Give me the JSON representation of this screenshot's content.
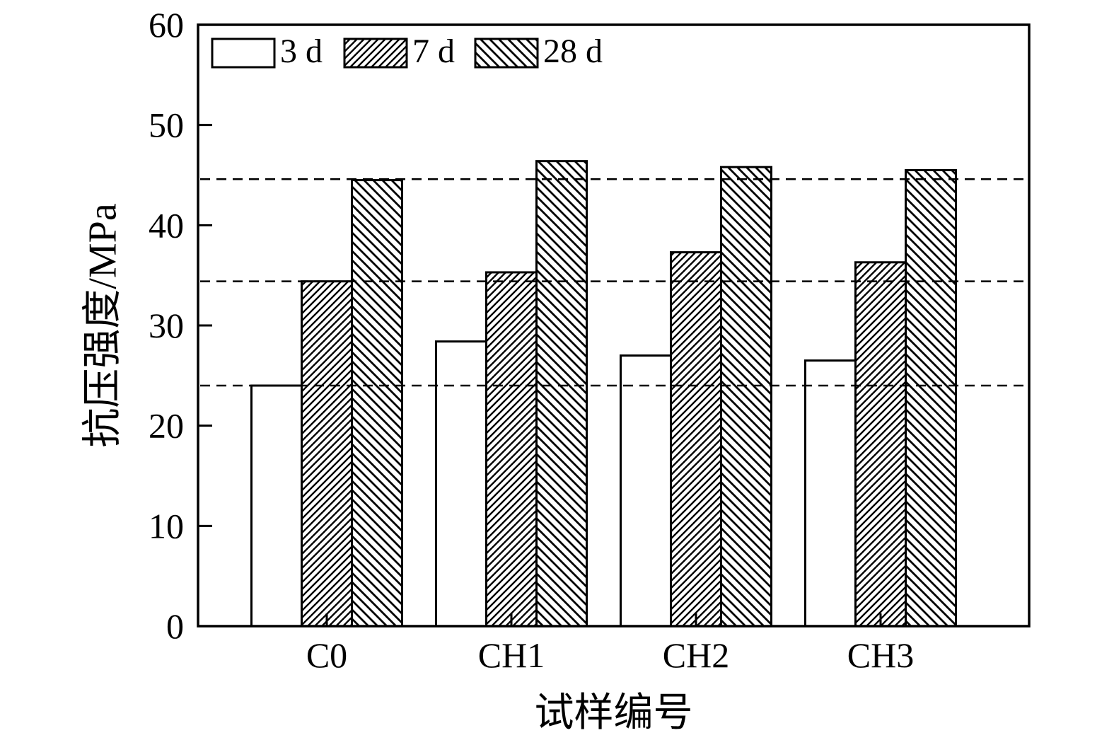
{
  "chart_data": {
    "type": "bar",
    "title": "",
    "xlabel": "试样编号",
    "ylabel": "抗压强度/MPa",
    "categories": [
      "C0",
      "CH1",
      "CH2",
      "CH3"
    ],
    "series": [
      {
        "name": "3 d",
        "pattern": "solid-white",
        "values": [
          24.0,
          28.4,
          27.0,
          26.5
        ]
      },
      {
        "name": "7 d",
        "pattern": "diagonal-forward",
        "values": [
          34.4,
          35.3,
          37.3,
          36.3
        ]
      },
      {
        "name": "28 d",
        "pattern": "diagonal-backward",
        "values": [
          44.5,
          46.4,
          45.8,
          45.5
        ]
      }
    ],
    "ylim": [
      0,
      60
    ],
    "yticks": [
      0,
      10,
      20,
      30,
      40,
      50,
      60
    ],
    "reference_lines": [
      24.0,
      34.4,
      44.6
    ],
    "reference_line_style": "dashed",
    "legend_position": "top-left",
    "grid": false,
    "colors": {
      "foreground": "#000000",
      "background": "#ffffff"
    }
  }
}
